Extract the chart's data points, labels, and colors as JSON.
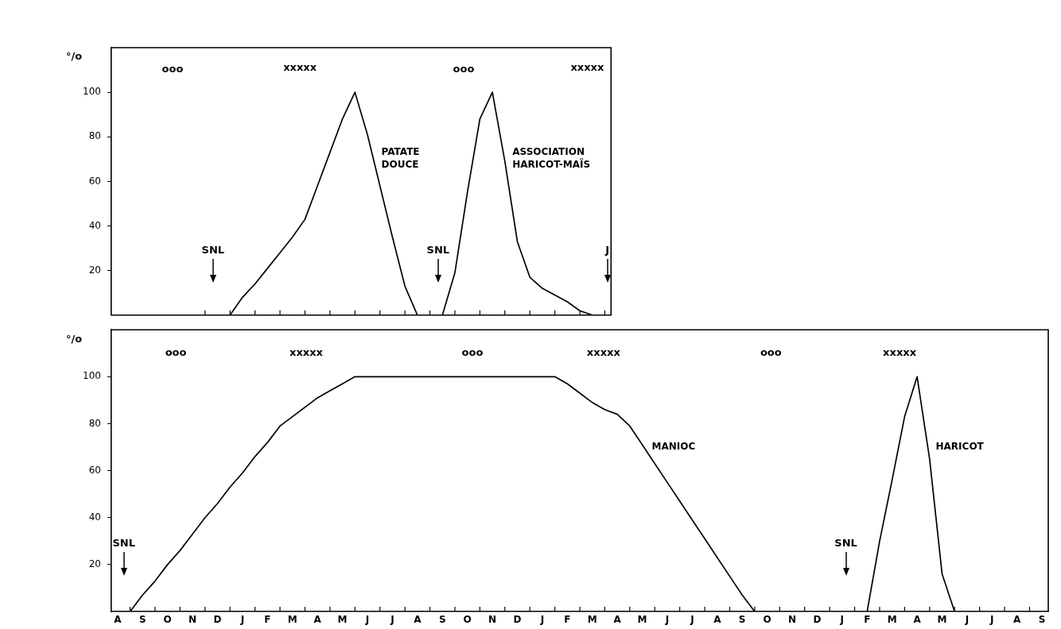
{
  "chart_data": [
    {
      "type": "line",
      "ylabel": "°/o",
      "ylim": [
        0,
        120
      ],
      "yticks": [
        20,
        40,
        60,
        80,
        100
      ],
      "categories": [
        null,
        null,
        null,
        null,
        null,
        null,
        null,
        null,
        null,
        null,
        null,
        null,
        null,
        null,
        null,
        null,
        null,
        null,
        null,
        null,
        null,
        null,
        null,
        null,
        null,
        null,
        null,
        null,
        null,
        null,
        null,
        null,
        null,
        null,
        null,
        null,
        null,
        null,
        null,
        null
      ],
      "marker": "none",
      "series": [
        {
          "name": "PATATE DOUCE",
          "color": "#000000",
          "values": [
            null,
            null,
            null,
            null,
            null,
            null,
            null,
            null,
            null,
            0,
            8,
            14,
            21,
            28,
            35,
            43,
            58,
            73,
            88,
            100,
            81,
            58,
            35,
            13,
            0,
            null,
            null,
            null,
            null,
            null,
            null,
            null,
            null,
            null,
            null,
            null,
            null,
            null,
            null,
            null
          ]
        },
        {
          "name": "ASSOCIATION HARICOT-MAÏS",
          "color": "#000000",
          "values": [
            null,
            null,
            null,
            null,
            null,
            null,
            null,
            null,
            null,
            null,
            null,
            null,
            null,
            null,
            null,
            null,
            null,
            null,
            null,
            null,
            null,
            null,
            null,
            null,
            null,
            null,
            0,
            19,
            55,
            88,
            100,
            69,
            33,
            17,
            12,
            9,
            6,
            2,
            0,
            null
          ]
        }
      ],
      "annotations": [
        "ooo",
        "xxxxx",
        "ooo",
        "xxxxx",
        "SNL",
        "SNL",
        "J"
      ]
    },
    {
      "type": "line",
      "ylabel": "°/o",
      "ylim": [
        0,
        120
      ],
      "yticks": [
        20,
        40,
        60,
        80,
        100
      ],
      "categories": [
        "A",
        null,
        "S",
        null,
        "O",
        null,
        "N",
        null,
        "D",
        null,
        "J",
        null,
        "F",
        null,
        "M",
        null,
        "A",
        null,
        "M",
        null,
        "J",
        null,
        "J",
        null,
        "A",
        null,
        "S",
        null,
        "O",
        null,
        "N",
        null,
        "D",
        null,
        "J",
        null,
        "F",
        null,
        "M",
        null,
        "A",
        null,
        "M",
        null,
        "J",
        null,
        "J",
        null,
        "A",
        null,
        "S",
        null,
        "O",
        null,
        "N",
        null,
        "D",
        null,
        "J",
        null,
        "F",
        null,
        "M",
        null,
        "A",
        null,
        "M",
        null,
        "J",
        null,
        "J",
        null,
        "A",
        null,
        "S"
      ],
      "marker": "none",
      "series": [
        {
          "name": "MANIOC",
          "color": "#000000",
          "values": [
            null,
            0,
            7,
            13,
            20,
            26,
            33,
            40,
            46,
            53,
            59,
            66,
            72,
            79,
            83,
            87,
            91,
            94,
            97,
            100,
            100,
            100,
            100,
            100,
            100,
            100,
            100,
            100,
            100,
            100,
            100,
            100,
            100,
            100,
            100,
            100,
            97,
            93,
            89,
            86,
            84,
            79,
            71,
            63,
            55,
            47,
            39,
            31,
            23,
            15,
            7,
            0,
            null,
            null,
            null,
            null,
            null,
            null,
            null,
            null,
            null,
            null,
            null,
            null,
            null,
            null,
            null,
            null,
            null,
            null,
            null,
            null,
            null,
            null,
            null
          ]
        },
        {
          "name": "HARICOT",
          "color": "#000000",
          "values": [
            null,
            null,
            null,
            null,
            null,
            null,
            null,
            null,
            null,
            null,
            null,
            null,
            null,
            null,
            null,
            null,
            null,
            null,
            null,
            null,
            null,
            null,
            null,
            null,
            null,
            null,
            null,
            null,
            null,
            null,
            null,
            null,
            null,
            null,
            null,
            null,
            null,
            null,
            null,
            null,
            null,
            null,
            null,
            null,
            null,
            null,
            null,
            null,
            null,
            null,
            null,
            null,
            null,
            null,
            null,
            null,
            null,
            null,
            null,
            null,
            0,
            30,
            56,
            83,
            100,
            65,
            16,
            0,
            null,
            null,
            null,
            null,
            null,
            null,
            null
          ]
        }
      ],
      "annotations": [
        "ooo",
        "xxxxx",
        "ooo",
        "xxxxx",
        "ooo",
        "xxxxx",
        "SNL",
        "SNL"
      ]
    }
  ]
}
